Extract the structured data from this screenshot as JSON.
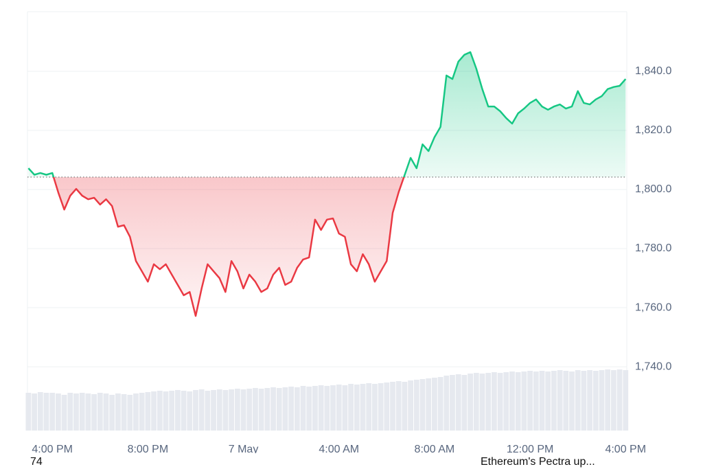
{
  "chart_data": {
    "type": "line",
    "x": [
      -1,
      -0.75,
      -0.5,
      -0.25,
      0,
      0.25,
      0.5,
      0.75,
      1,
      1.25,
      1.5,
      1.75,
      2,
      2.25,
      2.5,
      2.75,
      3,
      3.25,
      3.5,
      3.75,
      4,
      4.25,
      4.5,
      4.75,
      5,
      5.25,
      5.5,
      5.75,
      6,
      6.25,
      6.5,
      6.75,
      7,
      7.25,
      7.5,
      7.75,
      8,
      8.25,
      8.5,
      8.75,
      9,
      9.25,
      9.5,
      9.75,
      10,
      10.25,
      10.5,
      10.75,
      11,
      11.25,
      11.5,
      11.75,
      12,
      12.25,
      12.5,
      12.75,
      13,
      13.25,
      13.5,
      13.75,
      14,
      14.25,
      14.5,
      14.75,
      15,
      15.25,
      15.5,
      15.75,
      16,
      16.25,
      16.5,
      16.75,
      17,
      17.25,
      17.5,
      17.75,
      18,
      18.25,
      18.5,
      18.75,
      19,
      19.25,
      19.5,
      19.75,
      20,
      20.25,
      20.5,
      20.75,
      21,
      21.25,
      21.5,
      21.75,
      22,
      22.25,
      22.5,
      22.75,
      23,
      23.25,
      23.5,
      23.75,
      24
    ],
    "series": [
      {
        "name": "Price",
        "values": [
          1807.2,
          1805,
          1805.6,
          1805,
          1805.6,
          1799,
          1793.2,
          1797.9,
          1800.2,
          1797.9,
          1796.7,
          1797.2,
          1794.9,
          1796.7,
          1794.4,
          1787.4,
          1787.9,
          1784,
          1775.8,
          1772.3,
          1768.8,
          1774.7,
          1773,
          1774.7,
          1771.2,
          1767.7,
          1764.2,
          1765.3,
          1757.2,
          1766.5,
          1774.7,
          1772.3,
          1770,
          1765.3,
          1775.8,
          1772.3,
          1766.5,
          1771.2,
          1768.8,
          1765.3,
          1766.5,
          1771.2,
          1773.5,
          1767.7,
          1768.8,
          1773.5,
          1776.3,
          1777,
          1789.8,
          1786.3,
          1789.8,
          1790.2,
          1785.1,
          1784,
          1774.7,
          1772.3,
          1778.1,
          1774.7,
          1768.8,
          1772.3,
          1775.8,
          1792.1,
          1799.1,
          1804.9,
          1810.7,
          1807.2,
          1815.3,
          1813,
          1817.7,
          1821.2,
          1838.6,
          1837.4,
          1843.3,
          1845.6,
          1846.5,
          1840.9,
          1834,
          1828.1,
          1828.1,
          1826.5,
          1824.2,
          1822.3,
          1825.8,
          1827.4,
          1829.3,
          1830.5,
          1828.1,
          1827,
          1828.1,
          1828.8,
          1827.4,
          1828.1,
          1833.3,
          1829.3,
          1828.8,
          1830.5,
          1831.6,
          1834,
          1834.7,
          1835.1,
          1837.4
        ]
      }
    ],
    "volume": [
      55,
      54,
      56,
      55,
      55,
      54,
      52,
      55,
      54,
      55,
      54,
      53,
      55,
      54,
      52,
      54,
      53,
      52,
      54,
      55,
      56,
      57,
      58,
      57,
      58,
      59,
      58,
      57,
      59,
      60,
      58,
      59,
      60,
      59,
      60,
      61,
      60,
      61,
      62,
      61,
      62,
      63,
      62,
      63,
      64,
      63,
      65,
      64,
      65,
      66,
      65,
      66,
      67,
      66,
      68,
      67,
      68,
      69,
      68,
      69,
      70,
      71,
      72,
      71,
      73,
      74,
      75,
      76,
      77,
      78,
      80,
      81,
      82,
      81,
      83,
      84,
      83,
      84,
      85,
      84,
      85,
      86,
      85,
      86,
      87,
      86,
      87,
      86,
      87,
      88,
      87,
      86,
      88,
      87,
      88,
      87,
      88,
      89,
      88,
      89,
      88
    ],
    "vlim": [
      0,
      100
    ],
    "xlim": [
      -1.04,
      24.05
    ],
    "xticks": [
      {
        "value": 0,
        "label": "4:00 PM"
      },
      {
        "value": 4,
        "label": "8:00 PM"
      },
      {
        "value": 8,
        "label": "7 May"
      },
      {
        "value": 12,
        "label": "4:00 AM"
      },
      {
        "value": 16,
        "label": "8:00 AM"
      },
      {
        "value": 20,
        "label": "12:00 PM"
      },
      {
        "value": 24,
        "label": "4:00 PM"
      }
    ],
    "ylim": [
      1718.4,
      1860.2
    ],
    "yticks": [
      {
        "value": 1740,
        "label": "1,740.0"
      },
      {
        "value": 1760,
        "label": "1,760.0"
      },
      {
        "value": 1780,
        "label": "1,780.0"
      },
      {
        "value": 1800,
        "label": "1,800.0"
      },
      {
        "value": 1820,
        "label": "1,820.0"
      },
      {
        "value": 1840,
        "label": "1,840.0"
      }
    ],
    "baseline": 1804.2,
    "up_color": "#16c784",
    "down_color": "#ea3943",
    "volume_color": "#e6e9ef",
    "grid": true
  },
  "footer": {
    "count": "74",
    "headline": "Ethereum's Pectra up..."
  }
}
